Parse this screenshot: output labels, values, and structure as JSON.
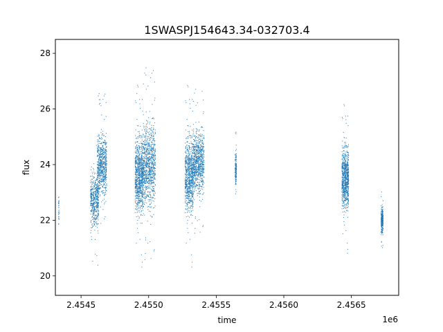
{
  "chart_data": {
    "type": "scatter",
    "title": "1SWASPJ154643.34-032703.4",
    "xlabel": "time",
    "ylabel": "flux",
    "x_offset_label": "1e6",
    "xlim": [
      2454310,
      2456850
    ],
    "ylim": [
      19.3,
      28.5
    ],
    "x_ticks": [
      2454500,
      2455000,
      2455500,
      2456000,
      2456500
    ],
    "x_tick_labels": [
      "2.4545",
      "2.4550",
      "2.4555",
      "2.4560",
      "2.4565"
    ],
    "y_ticks": [
      20,
      22,
      24,
      26,
      28
    ],
    "y_tick_labels": [
      "20",
      "22",
      "24",
      "26",
      "28"
    ],
    "grid": false,
    "marker_color": "#1f77b4",
    "series": [
      {
        "clusters": [
          {
            "x_min": 2454333,
            "x_max": 2454337,
            "y_center": 22.4,
            "y_spread": 0.35,
            "n": 30
          },
          {
            "x_min": 2454570,
            "x_max": 2454630,
            "y_center": 22.7,
            "y_spread": 0.8,
            "n": 500
          },
          {
            "x_min": 2454620,
            "x_max": 2454690,
            "y_center": 24.0,
            "y_spread": 0.9,
            "n": 700
          },
          {
            "x_min": 2454900,
            "x_max": 2454960,
            "y_center": 23.6,
            "y_spread": 1.1,
            "n": 900
          },
          {
            "x_min": 2454960,
            "x_max": 2455050,
            "y_center": 24.0,
            "y_spread": 1.2,
            "n": 900
          },
          {
            "x_min": 2455270,
            "x_max": 2455330,
            "y_center": 23.6,
            "y_spread": 1.1,
            "n": 800
          },
          {
            "x_min": 2455330,
            "x_max": 2455410,
            "y_center": 24.1,
            "y_spread": 0.9,
            "n": 800
          },
          {
            "x_min": 2455640,
            "x_max": 2455650,
            "y_center": 23.8,
            "y_spread": 0.5,
            "n": 150
          },
          {
            "x_min": 2456430,
            "x_max": 2456480,
            "y_center": 23.5,
            "y_spread": 0.9,
            "n": 800
          },
          {
            "x_min": 2456720,
            "x_max": 2456735,
            "y_center": 22.0,
            "y_spread": 0.35,
            "n": 250
          }
        ]
      }
    ]
  }
}
